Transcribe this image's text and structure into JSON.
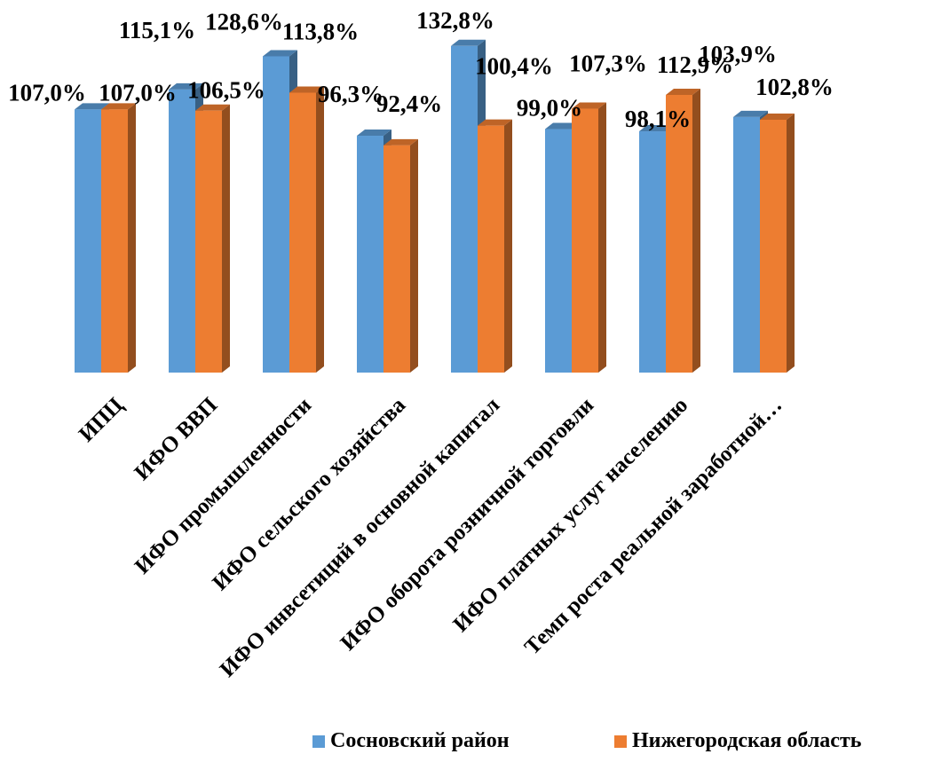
{
  "chart_data": {
    "type": "bar",
    "style": "3d-clustered-column",
    "categories": [
      "ИПЦ",
      "ИФО ВВП",
      "ИФО промышленности",
      "ИФО сельского хозяйства",
      "ИФО инвсетиций в основной капитал",
      "ИФО оборота розничной торговли",
      "ИФО платных услуг населению",
      "Темп роста реальной заработной…"
    ],
    "series": [
      {
        "name": "Сосновский район",
        "color": "#5B9BD5",
        "values": [
          107.0,
          115.1,
          128.6,
          96.3,
          132.8,
          99.0,
          98.1,
          103.9
        ],
        "labels": [
          "107,0%",
          "115,1%",
          "128,6%",
          "96,3%",
          "132,8%",
          "99,0%",
          "98,1%",
          "103,9%"
        ]
      },
      {
        "name": "Нижегородская область",
        "color": "#ED7D31",
        "values": [
          107.0,
          106.5,
          113.8,
          92.4,
          100.4,
          107.3,
          112.9,
          102.8
        ],
        "labels": [
          "107,0%",
          "106,5%",
          "113,8%",
          "92,4%",
          "100,4%",
          "107,3%",
          "112,9%",
          "102,8%"
        ]
      }
    ],
    "ylim": [
      0,
      140
    ],
    "grid": false,
    "legend_position": "bottom-right"
  }
}
